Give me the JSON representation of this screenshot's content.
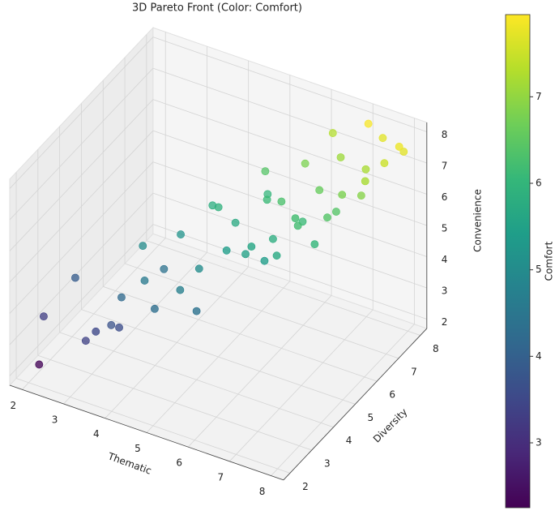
{
  "chart_data": {
    "type": "scatter3d",
    "title": "3D Pareto Front (Color: Comfort)",
    "xlabel": "Thematic",
    "ylabel": "Diversity",
    "zlabel": "Convenience",
    "colorbar_label": "Comfort",
    "x": [
      2.2,
      2.1,
      2.6,
      3.2,
      3.5,
      3.4,
      3.8,
      4.2,
      4.5,
      3.9,
      4.8,
      4.2,
      5.0,
      3.6,
      5.2,
      5.5,
      5.1,
      5.8,
      4.6,
      5.9,
      6.2,
      5.6,
      6.0,
      6.5,
      6.3,
      6.8,
      5.4,
      6.6,
      7.0,
      6.9,
      6.1,
      7.2,
      7.4,
      6.8,
      7.6,
      7.3,
      7.8,
      7.5,
      8.0,
      7.9,
      6.4,
      7.1,
      5.8,
      4.9,
      2.8,
      3.1,
      6.7,
      5.3
    ],
    "y": [
      2.1,
      2.5,
      3.0,
      2.8,
      3.3,
      3.6,
      3.9,
      3.6,
      4.2,
      4.6,
      4.5,
      4.8,
      4.0,
      4.2,
      5.0,
      5.3,
      5.6,
      5.0,
      5.5,
      5.8,
      5.4,
      6.1,
      6.0,
      5.8,
      6.4,
      6.0,
      6.4,
      6.6,
      6.2,
      6.8,
      6.9,
      6.5,
      7.0,
      7.2,
      6.8,
      7.4,
      7.3,
      7.8,
      7.6,
      8.0,
      7.6,
      7.9,
      5.6,
      5.2,
      3.1,
      3.7,
      5.3,
      6.7
    ],
    "z": [
      2.3,
      3.5,
      4.6,
      3.3,
      3.2,
      3.9,
      4.4,
      3.9,
      4.2,
      4.3,
      4.8,
      5.4,
      3.9,
      5.2,
      5.2,
      5.0,
      5.6,
      5.6,
      6.0,
      5.3,
      5.2,
      6.2,
      6.4,
      6.0,
      5.6,
      5.4,
      6.8,
      6.6,
      6.2,
      5.9,
      7.0,
      6.8,
      6.5,
      7.3,
      7.2,
      7.0,
      7.5,
      7.8,
      7.9,
      7.4,
      7.6,
      8.0,
      4.7,
      6.3,
      2.6,
      2.8,
      6.7,
      5.8
    ],
    "comfort": [
      2.3,
      3.3,
      3.9,
      3.5,
      3.6,
      4.2,
      4.6,
      4.3,
      4.7,
      4.4,
      5.0,
      5.2,
      4.4,
      5.0,
      5.4,
      5.5,
      5.7,
      5.6,
      5.8,
      5.8,
      5.7,
      6.1,
      6.3,
      6.2,
      6.1,
      6.0,
      6.4,
      6.6,
      6.4,
      6.4,
      6.8,
      6.8,
      6.9,
      7.1,
      7.2,
      7.2,
      7.5,
      7.7,
      7.8,
      7.7,
      7.3,
      7.9,
      5.4,
      5.9,
      3.4,
      3.7,
      6.2,
      6.0
    ],
    "xlim": [
      1.7,
      8.3
    ],
    "ylim": [
      1.7,
      8.3
    ],
    "zlim": [
      1.7,
      8.3
    ],
    "xticks": [
      2,
      3,
      4,
      5,
      6,
      7,
      8
    ],
    "yticks": [
      2,
      3,
      4,
      5,
      6,
      7,
      8
    ],
    "zticks": [
      2,
      3,
      4,
      5,
      6,
      7,
      8
    ],
    "clim": [
      2.25,
      7.95
    ],
    "cticks": [
      3,
      4,
      5,
      6,
      7
    ],
    "colormap": [
      "#440154",
      "#482878",
      "#3e4989",
      "#31688e",
      "#26828e",
      "#1f9e89",
      "#35b779",
      "#6ece58",
      "#b5de2b",
      "#fde725"
    ],
    "grid": true
  }
}
